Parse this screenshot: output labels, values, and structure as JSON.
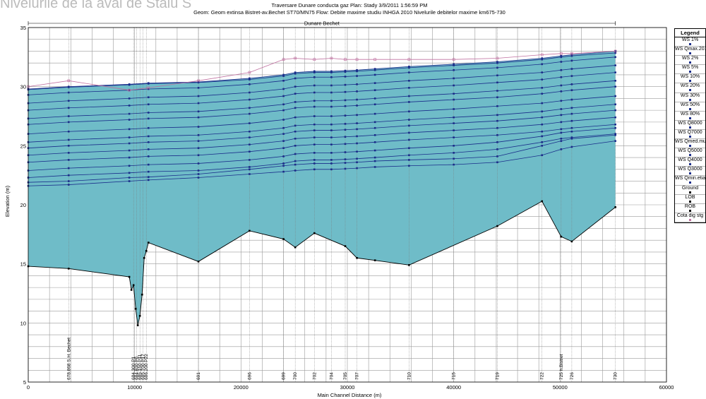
{
  "background_text": "Nivelurile de la aval de Staiu S",
  "chart_data": {
    "type": "line",
    "title": "Traversare Dunare conducta gaz    Plan: Stady    3/9/2011  1:56:59 PM",
    "subtitle": "Geom: Geom extinsa Bistret-av.Bechet ST70/MN75    Flow: Debite maxime studiu INHGA 2010  Nivelurile debitelor maxime km675-730",
    "reach_label": "Dunare Bechet",
    "xlabel": "Main Channel Distance (m)",
    "ylabel": "Elevation (m)",
    "xlim": [
      0,
      60000
    ],
    "ylim": [
      5,
      35
    ],
    "x_ticks": [
      "0",
      "10000",
      "20000",
      "30000",
      "40000",
      "50000",
      "60000"
    ],
    "y_ticks": [
      "5",
      "10",
      "15",
      "20",
      "25",
      "30",
      "35"
    ],
    "grid": true,
    "legend_position": "right",
    "ground": {
      "x": [
        0,
        3800,
        9500,
        9700,
        9900,
        10100,
        10300,
        10500,
        10700,
        10900,
        11100,
        11300,
        16000,
        20800,
        24000,
        25100,
        26900,
        29800,
        30900,
        32600,
        35800,
        44100,
        48300,
        50100,
        51100,
        55200
      ],
      "y": [
        14.8,
        14.6,
        13.9,
        12.8,
        13.2,
        11.2,
        9.8,
        10.6,
        12.4,
        15.5,
        16.1,
        16.8,
        15.2,
        17.8,
        17.1,
        16.4,
        17.6,
        16.5,
        15.5,
        15.3,
        14.9,
        18.2,
        20.3,
        17.3,
        16.9,
        19.8
      ]
    },
    "ws_x": [
      0,
      3800,
      9500,
      11300,
      16000,
      20800,
      24000,
      25100,
      26900,
      28500,
      29800,
      30900,
      32600,
      35800,
      40000,
      44100,
      48300,
      50100,
      51100,
      55200
    ],
    "series": [
      {
        "name": "WS 1%",
        "values": [
          29.8,
          30.0,
          30.2,
          30.3,
          30.4,
          30.7,
          31.0,
          31.2,
          31.3,
          31.3,
          31.35,
          31.4,
          31.5,
          31.7,
          31.9,
          32.1,
          32.4,
          32.6,
          32.7,
          33.0
        ]
      },
      {
        "name": "WS Qmax.2010",
        "values": [
          29.75,
          29.95,
          30.15,
          30.25,
          30.35,
          30.6,
          30.9,
          31.1,
          31.2,
          31.2,
          31.25,
          31.3,
          31.4,
          31.6,
          31.8,
          32.0,
          32.3,
          32.5,
          32.6,
          32.85
        ]
      },
      {
        "name": "WS 2%",
        "values": [
          29.3,
          29.5,
          29.7,
          29.8,
          29.9,
          30.2,
          30.5,
          30.7,
          30.8,
          30.8,
          30.85,
          30.9,
          31.0,
          31.2,
          31.4,
          31.6,
          31.9,
          32.1,
          32.2,
          32.5
        ]
      },
      {
        "name": "WS 5%",
        "values": [
          28.6,
          28.8,
          29.0,
          29.1,
          29.2,
          29.5,
          29.8,
          30.0,
          30.1,
          30.1,
          30.15,
          30.2,
          30.3,
          30.5,
          30.7,
          30.95,
          31.2,
          31.4,
          31.5,
          31.8
        ]
      },
      {
        "name": "WS 10%",
        "values": [
          28.0,
          28.2,
          28.4,
          28.5,
          28.6,
          28.9,
          29.2,
          29.4,
          29.5,
          29.5,
          29.55,
          29.6,
          29.7,
          29.9,
          30.1,
          30.35,
          30.6,
          30.8,
          30.9,
          31.2
        ]
      },
      {
        "name": "WS 20%",
        "values": [
          27.3,
          27.5,
          27.7,
          27.8,
          27.9,
          28.2,
          28.5,
          28.7,
          28.8,
          28.8,
          28.85,
          28.9,
          29.0,
          29.2,
          29.4,
          29.65,
          29.9,
          30.1,
          30.2,
          30.5
        ]
      },
      {
        "name": "WS 30%",
        "values": [
          26.8,
          27.0,
          27.2,
          27.3,
          27.4,
          27.7,
          28.0,
          28.2,
          28.3,
          28.3,
          28.35,
          28.4,
          28.5,
          28.7,
          28.9,
          29.1,
          29.4,
          29.6,
          29.7,
          30.0
        ]
      },
      {
        "name": "WS 50%",
        "values": [
          26.0,
          26.2,
          26.4,
          26.5,
          26.6,
          26.9,
          27.2,
          27.4,
          27.5,
          27.5,
          27.55,
          27.6,
          27.7,
          27.9,
          28.1,
          28.35,
          28.6,
          28.8,
          28.9,
          29.2
        ]
      },
      {
        "name": "WS 80%",
        "values": [
          25.3,
          25.5,
          25.7,
          25.8,
          25.9,
          26.2,
          26.5,
          26.7,
          26.8,
          26.8,
          26.85,
          26.9,
          27.0,
          27.2,
          27.4,
          27.6,
          27.9,
          28.1,
          28.2,
          28.5
        ]
      },
      {
        "name": "WS Q8000",
        "values": [
          24.8,
          25.0,
          25.2,
          25.3,
          25.4,
          25.7,
          26.0,
          26.2,
          26.3,
          26.3,
          26.35,
          26.4,
          26.5,
          26.7,
          26.9,
          27.1,
          27.4,
          27.6,
          27.7,
          28.0
        ]
      },
      {
        "name": "WS Q7000",
        "values": [
          24.2,
          24.4,
          24.6,
          24.7,
          24.8,
          25.1,
          25.4,
          25.6,
          25.7,
          25.7,
          25.75,
          25.8,
          25.9,
          26.1,
          26.3,
          26.5,
          26.8,
          27.0,
          27.1,
          27.4
        ]
      },
      {
        "name": "WS Qmed.multian",
        "values": [
          23.6,
          23.8,
          24.0,
          24.1,
          24.2,
          24.5,
          24.8,
          25.0,
          25.1,
          25.1,
          25.15,
          25.2,
          25.3,
          25.5,
          25.7,
          25.9,
          26.2,
          26.4,
          26.5,
          26.8
        ]
      },
      {
        "name": "WS Q5000",
        "values": [
          22.9,
          23.1,
          23.3,
          23.4,
          23.5,
          23.8,
          24.1,
          24.3,
          24.4,
          24.4,
          24.45,
          24.5,
          24.6,
          24.8,
          25.0,
          25.3,
          25.8,
          26.1,
          26.2,
          26.5
        ]
      },
      {
        "name": "WS Q4000",
        "values": [
          22.3,
          22.5,
          22.7,
          22.8,
          22.9,
          23.2,
          23.5,
          23.7,
          23.8,
          23.8,
          23.85,
          23.9,
          24.0,
          24.2,
          24.4,
          24.7,
          25.3,
          25.6,
          25.7,
          26.0
        ]
      },
      {
        "name": "WS Q3000",
        "values": [
          21.9,
          22.0,
          22.3,
          22.35,
          22.6,
          23.0,
          23.3,
          23.4,
          23.5,
          23.5,
          23.55,
          23.6,
          23.7,
          23.8,
          23.9,
          24.1,
          25.0,
          25.4,
          25.6,
          25.9
        ]
      },
      {
        "name": "WS Qmin.etiaj",
        "values": [
          21.6,
          21.7,
          22.0,
          22.1,
          22.3,
          22.6,
          22.8,
          22.9,
          23.0,
          23.0,
          23.05,
          23.1,
          23.2,
          23.3,
          23.4,
          23.6,
          24.2,
          24.7,
          24.9,
          25.4
        ]
      },
      {
        "name": "Cota dig stg",
        "values": [
          30.0,
          30.5,
          29.7,
          29.9,
          30.5,
          31.2,
          32.3,
          32.4,
          32.3,
          32.4,
          32.3,
          32.3,
          32.3,
          32.3,
          32.3,
          32.4,
          32.7,
          32.8,
          32.8,
          33.0
        ]
      }
    ],
    "river_stations": [
      {
        "x": 3800,
        "label": "678.868 S.H. Bechet"
      },
      {
        "x": 9900,
        "label": "684.300 P1"
      },
      {
        "x": 10200,
        "label": "684.830 P6"
      },
      {
        "x": 10500,
        "label": "685.150 P11"
      },
      {
        "x": 10800,
        "label": "685.700 P17"
      },
      {
        "x": 11100,
        "label": "686.200 P22"
      },
      {
        "x": 16000,
        "label": "691"
      },
      {
        "x": 20800,
        "label": "696"
      },
      {
        "x": 24000,
        "label": "699"
      },
      {
        "x": 25100,
        "label": "700"
      },
      {
        "x": 26900,
        "label": "702"
      },
      {
        "x": 28500,
        "label": "704"
      },
      {
        "x": 29800,
        "label": "705"
      },
      {
        "x": 30900,
        "label": "707"
      },
      {
        "x": 35800,
        "label": "710"
      },
      {
        "x": 40000,
        "label": "715"
      },
      {
        "x": 44100,
        "label": "719"
      },
      {
        "x": 48300,
        "label": "722"
      },
      {
        "x": 50100,
        "label": "725 h.Bistret"
      },
      {
        "x": 51100,
        "label": "726"
      },
      {
        "x": 55200,
        "label": "730"
      }
    ]
  },
  "legend": {
    "title": "Legend",
    "items": [
      {
        "label": "WS  1%",
        "color": "#1a2d8a"
      },
      {
        "label": "WS  Qmax.2010",
        "color": "#1a2d8a"
      },
      {
        "label": "WS  2%",
        "color": "#1a2d8a"
      },
      {
        "label": "WS  5%",
        "color": "#1a2d8a"
      },
      {
        "label": "WS  10%",
        "color": "#1a2d8a"
      },
      {
        "label": "WS  20%",
        "color": "#1a2d8a"
      },
      {
        "label": "WS  30%",
        "color": "#1a2d8a"
      },
      {
        "label": "WS  50%",
        "color": "#1a2d8a"
      },
      {
        "label": "WS  80%",
        "color": "#1a2d8a"
      },
      {
        "label": "WS  Q8000",
        "color": "#1a2d8a"
      },
      {
        "label": "WS  Q7000",
        "color": "#1a2d8a"
      },
      {
        "label": "WS  Qmed.multian",
        "color": "#1a2d8a"
      },
      {
        "label": "WS  Q5000",
        "color": "#1a2d8a"
      },
      {
        "label": "WS  Q4000",
        "color": "#1a2d8a"
      },
      {
        "label": "WS  Q3000",
        "color": "#1a2d8a"
      },
      {
        "label": "WS  Qmin.etiaj",
        "color": "#1a2d8a"
      },
      {
        "label": "Ground",
        "color": "#000000"
      },
      {
        "label": "LOB",
        "color": "#000000"
      },
      {
        "label": "ROB",
        "color": "#000000"
      },
      {
        "label": "Cota dig stg",
        "color": "#c070a0"
      }
    ]
  },
  "colors": {
    "water": "#6fbcc8",
    "ws_line": "#1a2d8a",
    "ground": "#000000",
    "levee": "#c070a0",
    "grid": "#9a9a9a"
  }
}
